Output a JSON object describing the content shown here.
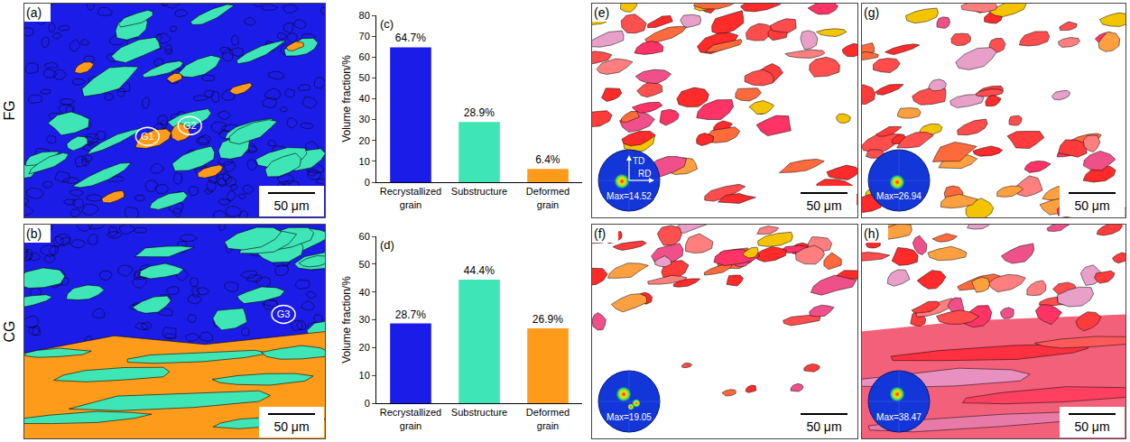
{
  "chart_data": [
    {
      "type": "bar",
      "annotations": [
        "(c)"
      ],
      "ylabel": "Volume fraction/%",
      "categories": [
        "Recrystallized grain",
        "Substructure",
        "Deformed grain"
      ],
      "values": [
        64.7,
        28.9,
        6.4
      ],
      "value_labels": [
        "64.7%",
        "28.9%",
        "6.4%"
      ],
      "colors": [
        "#1c1ce8",
        "#3fe6b5",
        "#ff9b1a"
      ],
      "ylim": [
        0,
        80
      ],
      "yticks": [
        0,
        10,
        20,
        30,
        40,
        50,
        60,
        70,
        80
      ],
      "data_labels": true,
      "grid": false
    },
    {
      "type": "bar",
      "annotations": [
        "(d)"
      ],
      "ylabel": "Volume fraction/%",
      "categories": [
        "Recrystallized grain",
        "Substructure",
        "Deformed grain"
      ],
      "values": [
        28.7,
        44.4,
        26.9
      ],
      "value_labels": [
        "28.7%",
        "44.4%",
        "26.9%"
      ],
      "colors": [
        "#1c1ce8",
        "#3fe6b5",
        "#ff9b1a"
      ],
      "ylim": [
        0,
        60
      ],
      "yticks": [
        0,
        10,
        20,
        30,
        40,
        50,
        60
      ],
      "data_labels": true,
      "grid": false
    }
  ],
  "rows": [
    "FG",
    "CG"
  ],
  "grain_type_maps": [
    {
      "panel": "(a)",
      "grain_labels": [
        "G1",
        "G2"
      ],
      "scale_bar": "50 μm"
    },
    {
      "panel": "(b)",
      "grain_labels": [
        "G3"
      ],
      "scale_bar": "50 μm"
    }
  ],
  "ipf_maps": [
    {
      "panel": "(e)",
      "pole_figure": {
        "axes": [
          "TD",
          "RD"
        ],
        "max_label": "Max=14.52"
      },
      "scale_bar": "50 μm"
    },
    {
      "panel": "(f)",
      "pole_figure": {
        "max_label": "Max=19.05"
      },
      "scale_bar": "50 μm"
    },
    {
      "panel": "(g)",
      "pole_figure": {
        "max_label": "Max=26.94"
      },
      "scale_bar": "50 μm"
    },
    {
      "panel": "(h)",
      "pole_figure": {
        "max_label": "Max=38.47"
      },
      "scale_bar": "50 μm"
    }
  ]
}
